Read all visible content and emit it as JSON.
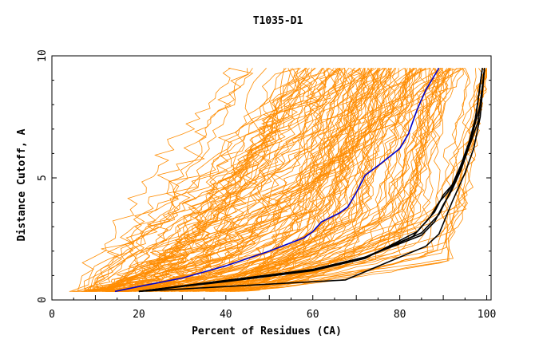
{
  "chart_data": {
    "type": "line",
    "title": "T1035-D1",
    "xlabel": "Percent of Residues (CA)",
    "ylabel": "Distance Cutoff, A",
    "xlim": [
      0,
      101
    ],
    "ylim": [
      0,
      10
    ],
    "x_ticks": [
      0,
      20,
      40,
      60,
      80,
      100
    ],
    "x_tick_labels": [
      "0",
      "20",
      "40",
      "60",
      "80",
      "100"
    ],
    "y_ticks": [
      0,
      5,
      10
    ],
    "y_tick_labels": [
      "0",
      "5",
      "10"
    ],
    "grid": false,
    "legend": "none",
    "colors": {
      "background_curves": "#ff8c00",
      "highlight_blue": "#0000cc",
      "highlight_black": "#000000",
      "axis": "#000000"
    },
    "background_curve_count": 150,
    "series": [
      {
        "color": "#0000cc",
        "x": [
          14.5,
          20,
          30,
          40,
          50,
          58,
          60,
          62,
          66,
          68,
          70,
          72,
          75,
          80,
          82,
          84,
          86,
          88,
          89
        ],
        "y": [
          0.35,
          0.55,
          0.9,
          1.4,
          2.0,
          2.55,
          2.8,
          3.2,
          3.55,
          3.8,
          4.4,
          5.1,
          5.5,
          6.2,
          6.8,
          7.8,
          8.6,
          9.2,
          9.5
        ]
      },
      {
        "color": "#000000",
        "x": [
          20,
          40,
          60,
          72,
          83,
          87,
          89,
          91,
          93,
          95,
          97,
          98,
          99
        ],
        "y": [
          0.35,
          0.8,
          1.25,
          1.75,
          2.6,
          3.4,
          4.0,
          4.4,
          5.0,
          5.8,
          7.0,
          8.2,
          9.5
        ]
      },
      {
        "color": "#000000",
        "x": [
          20,
          40,
          60,
          72,
          84,
          88,
          90,
          92,
          94,
          96,
          97.5,
          99
        ],
        "y": [
          0.35,
          0.75,
          1.2,
          1.7,
          2.8,
          3.6,
          4.3,
          4.7,
          5.5,
          6.5,
          7.5,
          9.5
        ]
      },
      {
        "color": "#000000",
        "x": [
          20,
          40,
          60,
          73,
          85,
          89,
          91,
          93,
          95,
          97,
          98.5,
          99.5
        ],
        "y": [
          0.35,
          0.78,
          1.22,
          1.8,
          2.75,
          3.5,
          4.2,
          5.0,
          5.9,
          7.0,
          8.0,
          9.5
        ]
      },
      {
        "color": "#000000",
        "x": [
          20,
          40,
          60,
          72,
          85,
          88,
          90,
          92,
          94,
          96,
          98,
          99.5
        ],
        "y": [
          0.35,
          0.8,
          1.25,
          1.75,
          2.65,
          3.2,
          3.9,
          4.5,
          5.3,
          6.3,
          7.3,
          9.5
        ]
      },
      {
        "color": "#000000",
        "x": [
          20,
          40,
          67.5,
          86,
          89,
          92,
          95,
          97,
          98.5,
          99.5
        ],
        "y": [
          0.35,
          0.55,
          0.82,
          2.2,
          2.7,
          4.0,
          5.2,
          6.2,
          7.5,
          9.5
        ]
      }
    ]
  }
}
